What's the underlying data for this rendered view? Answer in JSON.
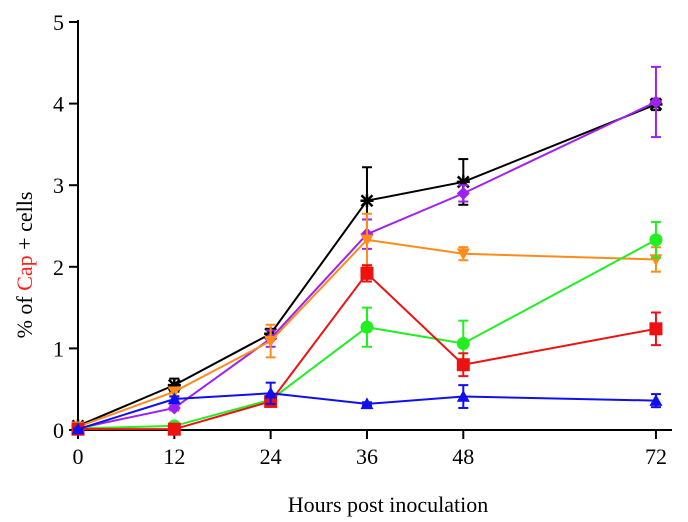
{
  "chart_data": {
    "type": "line",
    "xlabel": "Hours post inoculation",
    "ylabel_parts": [
      "% of ",
      "Cap",
      " + cells"
    ],
    "ylabel_colors": [
      "#000000",
      "#ff2020",
      "#000000"
    ],
    "x_ticks": [
      0,
      12,
      24,
      36,
      48,
      72
    ],
    "y_ticks": [
      0,
      1,
      2,
      3,
      4,
      5
    ],
    "xlim": [
      0,
      74
    ],
    "ylim": [
      0,
      5
    ],
    "grid": false,
    "series": [
      {
        "color": "#000000",
        "marker": "star",
        "x": [
          0,
          12,
          24,
          36,
          48,
          72
        ],
        "y": [
          0.05,
          0.55,
          1.18,
          2.81,
          3.04,
          3.99
        ],
        "err": [
          0.02,
          0.08,
          0.06,
          0.41,
          0.28,
          0.07
        ]
      },
      {
        "color": "#a020f0",
        "marker": "diamond",
        "x": [
          0,
          12,
          24,
          36,
          48,
          72
        ],
        "y": [
          0.02,
          0.27,
          1.12,
          2.4,
          2.9,
          4.02
        ],
        "err": [
          0.01,
          0.03,
          0.1,
          0.18,
          0.1,
          0.43
        ]
      },
      {
        "color": "#ff8c1a",
        "marker": "triangle-down",
        "x": [
          0,
          12,
          24,
          36,
          48,
          72
        ],
        "y": [
          0.04,
          0.47,
          1.09,
          2.33,
          2.16,
          2.09
        ],
        "err": [
          0.02,
          0.05,
          0.2,
          0.32,
          0.08,
          0.15
        ]
      },
      {
        "color": "#22ee22",
        "marker": "circle",
        "x": [
          0,
          12,
          24,
          36,
          48,
          72
        ],
        "y": [
          0.02,
          0.05,
          0.37,
          1.26,
          1.06,
          2.33
        ],
        "err": [
          0.01,
          0.01,
          0.02,
          0.24,
          0.28,
          0.22
        ]
      },
      {
        "color": "#ee1111",
        "marker": "square",
        "x": [
          0,
          12,
          24,
          36,
          48,
          72
        ],
        "y": [
          0.01,
          0.01,
          0.35,
          1.92,
          0.8,
          1.24
        ],
        "err": [
          0.01,
          0.01,
          0.03,
          0.1,
          0.14,
          0.2
        ]
      },
      {
        "color": "#1010ee",
        "marker": "triangle-up",
        "x": [
          0,
          12,
          24,
          36,
          48,
          72
        ],
        "y": [
          0.01,
          0.38,
          0.45,
          0.32,
          0.41,
          0.36
        ],
        "err": [
          0.01,
          0.03,
          0.13,
          0.02,
          0.14,
          0.08
        ]
      }
    ]
  }
}
